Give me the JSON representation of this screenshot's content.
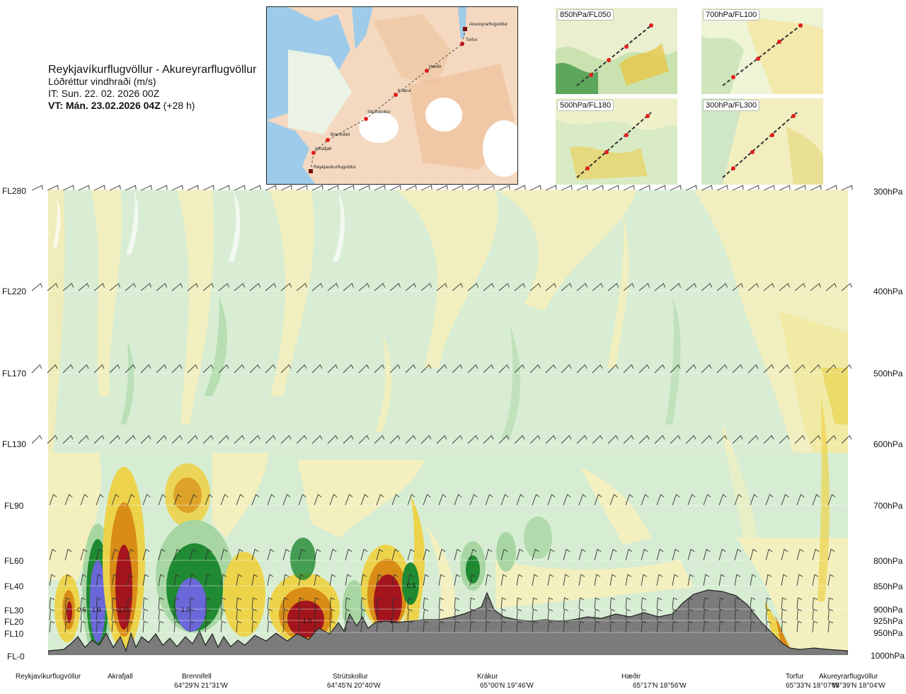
{
  "title": {
    "route": "Reykjavíkurflugvöllur - Akureyrarflugvöllur",
    "variable": "Lóðréttur vindhraði (m/s)",
    "issue_time": "IT: Sun. 22. 02. 2026 00Z",
    "valid_prefix": "VT: Mán. 23.02.2026 04Z",
    "valid_offset": "(+28 h)"
  },
  "map": {
    "waypoints": [
      {
        "name": "Akureyrarflugvöllur",
        "marker": "square"
      },
      {
        "name": "Torfur",
        "marker": "dot"
      },
      {
        "name": "Hæðir",
        "marker": "dot"
      },
      {
        "name": "Krákur",
        "marker": "dot"
      },
      {
        "name": "Strútskollur",
        "marker": "dot"
      },
      {
        "name": "Brennifell",
        "marker": "dot"
      },
      {
        "name": "Akrafjall",
        "marker": "dot"
      },
      {
        "name": "Reykjavíkurflugvöllur",
        "marker": "square"
      }
    ]
  },
  "minimaps": [
    {
      "label": "850hPa/FL050"
    },
    {
      "label": "700hPa/FL100"
    },
    {
      "label": "500hPa/FL180"
    },
    {
      "label": "300hPa/FL300"
    }
  ],
  "chart_data": {
    "type": "heatmap",
    "levels": [
      {
        "fl": "FL280",
        "pressure": "300hPa"
      },
      {
        "fl": "FL220",
        "pressure": "400hPa"
      },
      {
        "fl": "FL170",
        "pressure": "500hPa"
      },
      {
        "fl": "FL130",
        "pressure": "600hPa"
      },
      {
        "fl": "FL90",
        "pressure": "700hPa"
      },
      {
        "fl": "FL60",
        "pressure": "800hPa"
      },
      {
        "fl": "FL40",
        "pressure": "850hPa"
      },
      {
        "fl": "FL30",
        "pressure": "900hPa"
      },
      {
        "fl": "FL20",
        "pressure": "925hPa"
      },
      {
        "fl": "FL10",
        "pressure": "950hPa"
      },
      {
        "fl": "FL-0",
        "pressure": "1000hPa"
      }
    ],
    "locations": [
      {
        "name": "Reykjavíkurflugvöllur",
        "coord": ""
      },
      {
        "name": "Akrafjall",
        "coord": ""
      },
      {
        "name": "Brennifell",
        "coord": "64°29'N 21°31'W"
      },
      {
        "name": "Strútskollur",
        "coord": "64°45'N 20°40'W"
      },
      {
        "name": "Krákur",
        "coord": "65°00'N 19°46'W"
      },
      {
        "name": "Hæðir",
        "coord": "65°17'N 18°56'W"
      },
      {
        "name": "Torfur",
        "coord": "65°33'N 18°07'W"
      },
      {
        "name": "Akureyrarflugvöllur",
        "coord": "65°39'N 18°04'W"
      }
    ],
    "contour_labels": [
      "-0.5",
      "1.0",
      "-1.0",
      "1.0",
      "1.0",
      "1",
      "0.5"
    ],
    "colors": {
      "strong_down": "#6a67d8",
      "down": "#1f8a32",
      "weak_down": "#a7d6a3",
      "calm_down": "#d7ecd0",
      "calm_up": "#f3efbe",
      "weak_up": "#ecd34a",
      "up": "#d98c16",
      "strong_up": "#a3141c",
      "terrain": "#7b7b7b"
    }
  }
}
